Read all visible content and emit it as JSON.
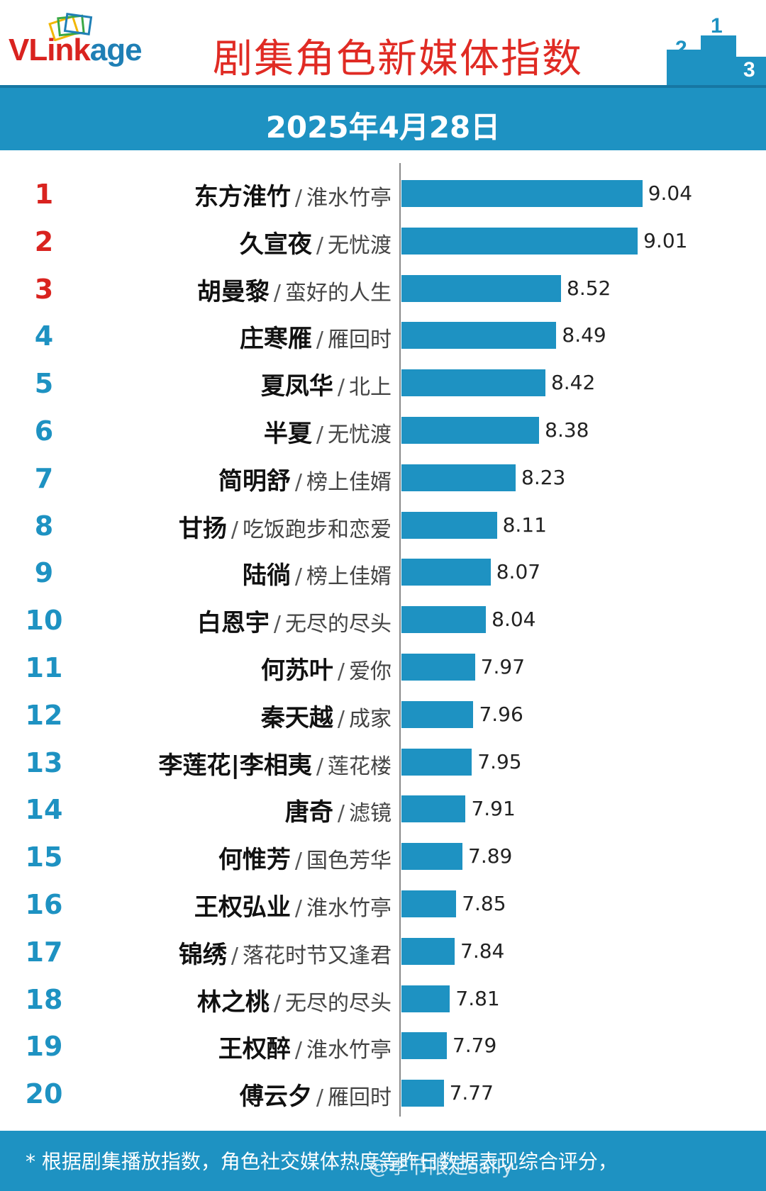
{
  "header": {
    "logo_prefix": "VLink",
    "logo_suffix": "age",
    "title": "剧集角色新媒体指数",
    "podium_numbers": [
      "2",
      "1",
      "3"
    ]
  },
  "date": "2025年4月28日",
  "colors": {
    "bar": "#1e92c2",
    "top_rank": "#d9231f",
    "rank": "#1e92c2",
    "title": "#e02b24"
  },
  "chart_data": {
    "type": "bar",
    "orientation": "horizontal",
    "xlim": [
      7.5,
      9.15
    ],
    "ranks": [
      "1",
      "2",
      "3",
      "4",
      "5",
      "6",
      "7",
      "8",
      "9",
      "10",
      "11",
      "12",
      "13",
      "14",
      "15",
      "16",
      "17",
      "18",
      "19",
      "20"
    ],
    "names": [
      "东方淮竹",
      "久宣夜",
      "胡曼黎",
      "庄寒雁",
      "夏凤华",
      "半夏",
      "简明舒",
      "甘扬",
      "陆徜",
      "白恩宇",
      "何苏叶",
      "秦天越",
      "李莲花|李相夷",
      "唐奇",
      "何惟芳",
      "王权弘业",
      "锦绣",
      "林之桃",
      "王权醉",
      "傅云夕"
    ],
    "dramas": [
      "淮水竹亭",
      "无忧渡",
      "蛮好的人生",
      "雁回时",
      "北上",
      "无忧渡",
      "榜上佳婿",
      "吃饭跑步和恋爱",
      "榜上佳婿",
      "无尽的尽头",
      "爱你",
      "成家",
      "莲花楼",
      "滤镜",
      "国色芳华",
      "淮水竹亭",
      "落花时节又逢君",
      "无尽的尽头",
      "淮水竹亭",
      "雁回时"
    ],
    "values": [
      9.04,
      9.01,
      8.52,
      8.49,
      8.42,
      8.38,
      8.23,
      8.11,
      8.07,
      8.04,
      7.97,
      7.96,
      7.95,
      7.91,
      7.89,
      7.85,
      7.84,
      7.81,
      7.79,
      7.77
    ],
    "value_labels": [
      "9.04",
      "9.01",
      "8.52",
      "8.49",
      "8.42",
      "8.38",
      "8.23",
      "8.11",
      "8.07",
      "8.04",
      "7.97",
      "7.96",
      "7.95",
      "7.91",
      "7.89",
      "7.85",
      "7.84",
      "7.81",
      "7.79",
      "7.77"
    ],
    "separator": "/"
  },
  "footer": {
    "note": "* 根据剧集播放指数，角色社交媒体热度等昨日数据表现综合评分，",
    "watermark": "@季节限定sally"
  }
}
